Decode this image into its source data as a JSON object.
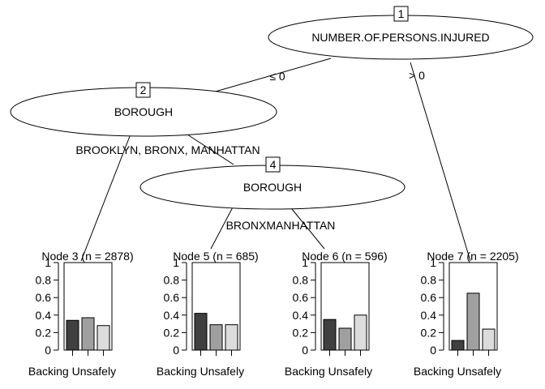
{
  "tree": {
    "splits": [
      {
        "id": "1",
        "variable": "NUMBER.OF.PERSONS.INJURED",
        "left_label": "≤ 0",
        "right_label": "> 0"
      },
      {
        "id": "2",
        "variable": "BOROUGH",
        "left_label": "BROOKLYN, ",
        "right_label": "BRONX, MANHATTAN"
      },
      {
        "id": "4",
        "variable": "BOROUGH",
        "left_label": "BRONX",
        "right_label": "MANHATTAN"
      }
    ],
    "terminals": [
      {
        "id": "3",
        "title": "Node 3 (n = 2878)",
        "xlabel": "Backing Unsafely"
      },
      {
        "id": "5",
        "title": "Node 5 (n = 685)",
        "xlabel": "Backing Unsafely"
      },
      {
        "id": "6",
        "title": "Node 6 (n = 596)",
        "xlabel": "Backing Unsafely"
      },
      {
        "id": "7",
        "title": "Node 7 (n = 2205)",
        "xlabel": "Backing Unsafely"
      }
    ]
  },
  "chart_data": {
    "type": "bar",
    "title": "",
    "xlabel": "Backing Unsafely",
    "ylabel": "",
    "ylim": [
      0,
      1
    ],
    "yticks": [
      "0",
      "0.2",
      "0.4",
      "0.6",
      "0.8",
      "1"
    ],
    "bar_colors": [
      "#404040",
      "#a0a0a0",
      "#dcdcdc"
    ],
    "panels": [
      {
        "node": "3",
        "values": [
          0.34,
          0.37,
          0.28
        ]
      },
      {
        "node": "5",
        "values": [
          0.42,
          0.29,
          0.29
        ]
      },
      {
        "node": "6",
        "values": [
          0.35,
          0.25,
          0.4
        ]
      },
      {
        "node": "7",
        "values": [
          0.11,
          0.65,
          0.24
        ]
      }
    ]
  }
}
